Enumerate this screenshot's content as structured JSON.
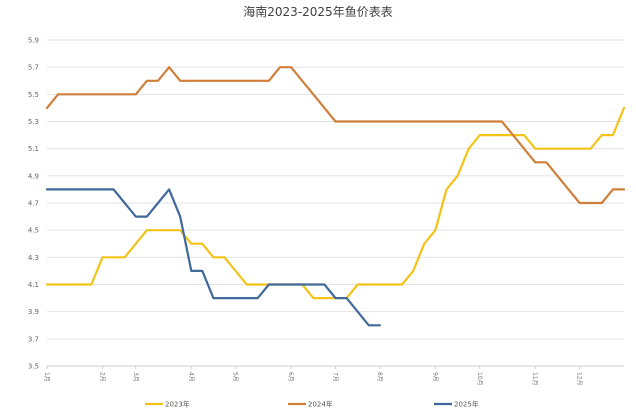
{
  "chart_data": {
    "type": "line",
    "title": "海南2023-2025年鱼价表表",
    "xlabel": "",
    "ylabel": "",
    "ylim": [
      3.5,
      5.9
    ],
    "yticks": [
      "5.9",
      "5.7",
      "5.5",
      "5.3",
      "5.1",
      "4.9",
      "4.7",
      "4.5",
      "4.3",
      "4.1",
      "3.9",
      "3.7",
      "3.5"
    ],
    "xlim": [
      1,
      53
    ],
    "xticks": [
      {
        "label": "1月",
        "x": 1
      },
      {
        "label": "2月",
        "x": 6
      },
      {
        "label": "3月",
        "x": 9
      },
      {
        "label": "4月",
        "x": 14
      },
      {
        "label": "5月",
        "x": 18
      },
      {
        "label": "6月",
        "x": 23
      },
      {
        "label": "7月",
        "x": 27
      },
      {
        "label": "8月",
        "x": 31
      },
      {
        "label": "9月",
        "x": 36
      },
      {
        "label": "10月",
        "x": 40
      },
      {
        "label": "11月",
        "x": 45
      },
      {
        "label": "12月",
        "x": 49
      }
    ],
    "grid": true,
    "legend_position": "bottom",
    "series": [
      {
        "name": "2023年",
        "color": "#f2c318",
        "points": [
          [
            1,
            4.1
          ],
          [
            2,
            4.1
          ],
          [
            3,
            4.1
          ],
          [
            4,
            4.1
          ],
          [
            5,
            4.1
          ],
          [
            6,
            4.3
          ],
          [
            7,
            4.3
          ],
          [
            8,
            4.3
          ],
          [
            9,
            4.4
          ],
          [
            10,
            4.5
          ],
          [
            11,
            4.5
          ],
          [
            12,
            4.5
          ],
          [
            13,
            4.5
          ],
          [
            14,
            4.4
          ],
          [
            15,
            4.4
          ],
          [
            16,
            4.3
          ],
          [
            17,
            4.3
          ],
          [
            18,
            4.2
          ],
          [
            19,
            4.1
          ],
          [
            20,
            4.1
          ],
          [
            21,
            4.1
          ],
          [
            22,
            4.1
          ],
          [
            23,
            4.1
          ],
          [
            24,
            4.1
          ],
          [
            25,
            4.0
          ],
          [
            26,
            4.0
          ],
          [
            27,
            4.0
          ],
          [
            28,
            4.0
          ],
          [
            29,
            4.1
          ],
          [
            30,
            4.1
          ],
          [
            31,
            4.1
          ],
          [
            32,
            4.1
          ],
          [
            33,
            4.1
          ],
          [
            34,
            4.2
          ],
          [
            35,
            4.4
          ],
          [
            36,
            4.5
          ],
          [
            37,
            4.8
          ],
          [
            38,
            4.9
          ],
          [
            39,
            5.1
          ],
          [
            40,
            5.2
          ],
          [
            41,
            5.2
          ],
          [
            42,
            5.2
          ],
          [
            43,
            5.2
          ],
          [
            44,
            5.2
          ],
          [
            45,
            5.1
          ],
          [
            46,
            5.1
          ],
          [
            47,
            5.1
          ],
          [
            48,
            5.1
          ],
          [
            49,
            5.1
          ],
          [
            50,
            5.1
          ],
          [
            51,
            5.2
          ],
          [
            52,
            5.2
          ],
          [
            53,
            5.4
          ]
        ]
      },
      {
        "name": "2024年",
        "color": "#d07f3a",
        "points": [
          [
            1,
            5.4
          ],
          [
            2,
            5.5
          ],
          [
            3,
            5.5
          ],
          [
            4,
            5.5
          ],
          [
            5,
            5.5
          ],
          [
            6,
            5.5
          ],
          [
            7,
            5.5
          ],
          [
            8,
            5.5
          ],
          [
            9,
            5.5
          ],
          [
            10,
            5.6
          ],
          [
            11,
            5.6
          ],
          [
            12,
            5.7
          ],
          [
            13,
            5.6
          ],
          [
            14,
            5.6
          ],
          [
            15,
            5.6
          ],
          [
            16,
            5.6
          ],
          [
            17,
            5.6
          ],
          [
            18,
            5.6
          ],
          [
            19,
            5.6
          ],
          [
            20,
            5.6
          ],
          [
            21,
            5.6
          ],
          [
            22,
            5.7
          ],
          [
            23,
            5.7
          ],
          [
            24,
            5.6
          ],
          [
            25,
            5.5
          ],
          [
            26,
            5.4
          ],
          [
            27,
            5.3
          ],
          [
            28,
            5.3
          ],
          [
            29,
            5.3
          ],
          [
            30,
            5.3
          ],
          [
            31,
            5.3
          ],
          [
            32,
            5.3
          ],
          [
            33,
            5.3
          ],
          [
            34,
            5.3
          ],
          [
            35,
            5.3
          ],
          [
            36,
            5.3
          ],
          [
            37,
            5.3
          ],
          [
            38,
            5.3
          ],
          [
            39,
            5.3
          ],
          [
            40,
            5.3
          ],
          [
            41,
            5.3
          ],
          [
            42,
            5.3
          ],
          [
            43,
            5.2
          ],
          [
            44,
            5.1
          ],
          [
            45,
            5.0
          ],
          [
            46,
            5.0
          ],
          [
            47,
            4.9
          ],
          [
            48,
            4.8
          ],
          [
            49,
            4.7
          ],
          [
            50,
            4.7
          ],
          [
            51,
            4.7
          ],
          [
            52,
            4.8
          ],
          [
            53,
            4.8
          ]
        ]
      },
      {
        "name": "2025年",
        "color": "#41699c",
        "points": [
          [
            1,
            4.8
          ],
          [
            2,
            4.8
          ],
          [
            3,
            4.8
          ],
          [
            4,
            4.8
          ],
          [
            5,
            4.8
          ],
          [
            6,
            4.8
          ],
          [
            7,
            4.8
          ],
          [
            8,
            4.7
          ],
          [
            9,
            4.6
          ],
          [
            10,
            4.6
          ],
          [
            11,
            4.7
          ],
          [
            12,
            4.8
          ],
          [
            13,
            4.6
          ],
          [
            14,
            4.2
          ],
          [
            15,
            4.2
          ],
          [
            16,
            4.0
          ],
          [
            17,
            4.0
          ],
          [
            18,
            4.0
          ],
          [
            19,
            4.0
          ],
          [
            20,
            4.0
          ],
          [
            21,
            4.1
          ],
          [
            22,
            4.1
          ],
          [
            23,
            4.1
          ],
          [
            24,
            4.1
          ],
          [
            25,
            4.1
          ],
          [
            26,
            4.1
          ],
          [
            27,
            4.0
          ],
          [
            28,
            4.0
          ],
          [
            29,
            3.9
          ],
          [
            30,
            3.8
          ],
          [
            31,
            3.8
          ]
        ]
      }
    ]
  }
}
